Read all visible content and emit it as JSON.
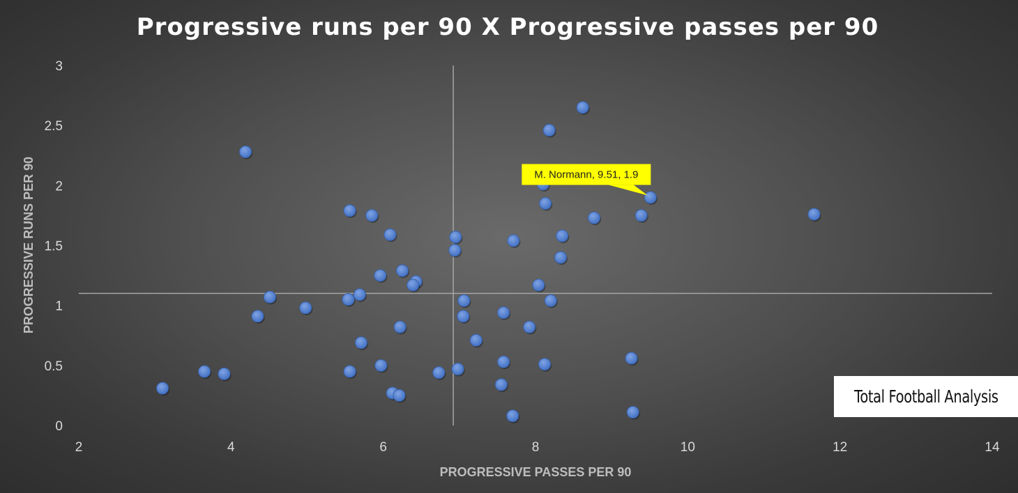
{
  "chart_data": {
    "type": "scatter",
    "title": "Progressive runs per 90 X Progressive passes per 90",
    "xlabel": "PROGRESSIVE PASSES PER 90",
    "ylabel": "PROGRESSIVE RUNS PER 90",
    "xlim": [
      2,
      14
    ],
    "ylim": [
      0,
      3
    ],
    "xticks": [
      2,
      4,
      6,
      8,
      10,
      12,
      14
    ],
    "yticks": [
      0,
      0.5,
      1,
      1.5,
      2,
      2.5,
      3
    ],
    "grid": false,
    "reference_lines": {
      "x": 6.92,
      "y": 1.1
    },
    "marker_color": "#4472c4",
    "series": [
      {
        "points": [
          [
            8.62,
            2.65
          ],
          [
            8.18,
            2.46
          ],
          [
            4.19,
            2.28
          ],
          [
            8.1,
            2.01
          ],
          [
            9.51,
            1.9
          ],
          [
            8.13,
            1.85
          ],
          [
            5.56,
            1.79
          ],
          [
            5.85,
            1.75
          ],
          [
            8.77,
            1.73
          ],
          [
            9.39,
            1.75
          ],
          [
            11.66,
            1.76
          ],
          [
            6.09,
            1.59
          ],
          [
            6.95,
            1.57
          ],
          [
            8.35,
            1.58
          ],
          [
            7.71,
            1.54
          ],
          [
            6.94,
            1.46
          ],
          [
            8.33,
            1.4
          ],
          [
            6.25,
            1.29
          ],
          [
            5.96,
            1.25
          ],
          [
            6.43,
            1.2
          ],
          [
            6.39,
            1.17
          ],
          [
            8.04,
            1.17
          ],
          [
            4.51,
            1.07
          ],
          [
            5.69,
            1.09
          ],
          [
            5.54,
            1.05
          ],
          [
            7.06,
            1.04
          ],
          [
            8.2,
            1.04
          ],
          [
            4.98,
            0.98
          ],
          [
            7.58,
            0.94
          ],
          [
            4.35,
            0.91
          ],
          [
            7.05,
            0.91
          ],
          [
            6.22,
            0.82
          ],
          [
            7.92,
            0.82
          ],
          [
            7.22,
            0.71
          ],
          [
            5.71,
            0.69
          ],
          [
            9.26,
            0.56
          ],
          [
            7.58,
            0.53
          ],
          [
            8.12,
            0.51
          ],
          [
            5.97,
            0.5
          ],
          [
            6.98,
            0.47
          ],
          [
            3.65,
            0.45
          ],
          [
            3.91,
            0.43
          ],
          [
            5.56,
            0.45
          ],
          [
            6.73,
            0.44
          ],
          [
            7.55,
            0.34
          ],
          [
            3.1,
            0.31
          ],
          [
            6.12,
            0.27
          ],
          [
            6.21,
            0.25
          ],
          [
            7.7,
            0.08
          ],
          [
            9.28,
            0.11
          ]
        ]
      }
    ],
    "annotation": {
      "text": "M. Normann, 9.51, 1.9",
      "x": 9.51,
      "y": 1.9
    }
  },
  "branding": {
    "logo_text": "Total Football Analysis",
    "logo_bg": "#ffffff"
  }
}
